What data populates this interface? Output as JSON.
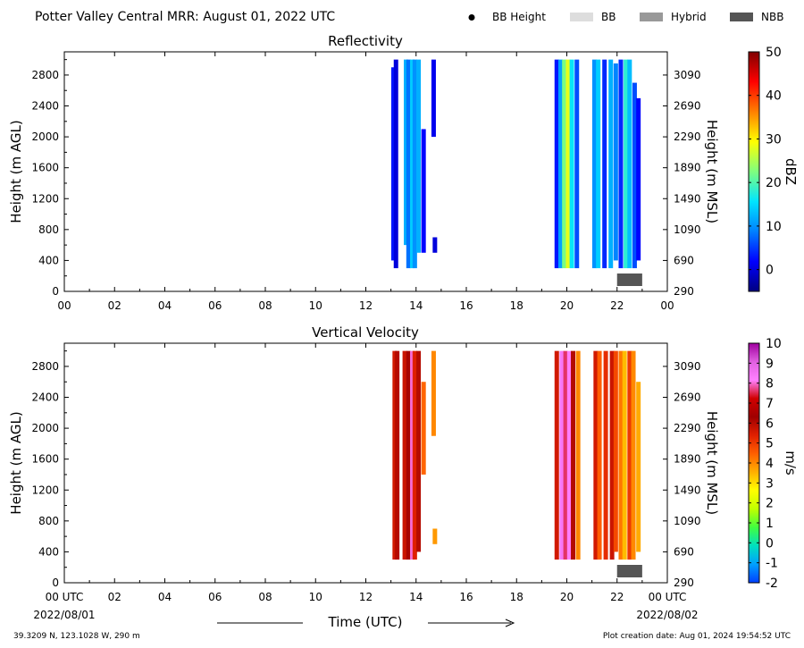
{
  "header": {
    "title": "Potter Valley Central MRR:  August 01, 2022 UTC",
    "legend": [
      {
        "label": "BB Height",
        "marker": "dot",
        "color": "#000000"
      },
      {
        "label": "BB",
        "marker": "box",
        "color": "#dddddd"
      },
      {
        "label": "Hybrid",
        "marker": "box",
        "color": "#999999"
      },
      {
        "label": "NBB",
        "marker": "box",
        "color": "#555555"
      }
    ]
  },
  "panels": [
    {
      "title": "Reflectivity",
      "ylabel_left": "Height (m AGL)",
      "ylabel_right": "Height (m MSL)",
      "colorbar": {
        "label": "dBZ",
        "ticks": [
          "50",
          "40",
          "30",
          "20",
          "10",
          "0"
        ],
        "tick_values": [
          50,
          40,
          30,
          20,
          10,
          0
        ],
        "range": [
          -5,
          50
        ],
        "colors": [
          "#000080",
          "#0000ff",
          "#0080ff",
          "#00e5ff",
          "#7fff7f",
          "#ffff00",
          "#ff8000",
          "#ff0000",
          "#800000"
        ]
      }
    },
    {
      "title": "Vertical Velocity",
      "ylabel_left": "Height (m AGL)",
      "ylabel_right": "Height (m MSL)",
      "colorbar": {
        "label": "m/s",
        "ticks": [
          "10",
          "9",
          "8",
          "7",
          "6",
          "5",
          "4",
          "3",
          "2",
          "1",
          "0",
          "-1",
          "-2"
        ],
        "tick_values": [
          10,
          9,
          8,
          7,
          6,
          5,
          4,
          3,
          2,
          1,
          0,
          -1,
          -2
        ],
        "range": [
          -2,
          10
        ],
        "colors": [
          "#0040ff",
          "#00a0ff",
          "#00e0c0",
          "#40ff40",
          "#c0ff00",
          "#ffff00",
          "#ffb000",
          "#ff6000",
          "#e02000",
          "#a00000",
          "#d00000",
          "#ff80ff",
          "#e060e0",
          "#a000a0"
        ]
      }
    }
  ],
  "footer": {
    "xlabel": "Time (UTC)",
    "start_date": "2022/08/01",
    "end_date": "2022/08/02",
    "location": "39.3209 N, 123.1028 W, 290 m",
    "creation": "Plot creation date: Aug 01, 2024 19:54:52 UTC"
  },
  "chart_data": [
    {
      "type": "heatmap",
      "title": "Reflectivity",
      "x_ticks": [
        "00",
        "02",
        "04",
        "06",
        "08",
        "10",
        "12",
        "14",
        "16",
        "18",
        "20",
        "22",
        "00"
      ],
      "xlim": [
        0,
        24
      ],
      "ylim_agl": [
        0,
        3100
      ],
      "y_ticks_agl": [
        "0",
        "400",
        "800",
        "1200",
        "1600",
        "2000",
        "2400",
        "2800"
      ],
      "y_ticks_msl": [
        "290",
        "690",
        "1090",
        "1490",
        "1890",
        "2290",
        "2690",
        "3090"
      ],
      "colorbar_unit": "dBZ",
      "bright_band": {
        "class": "NBB",
        "start_hour": 22.0,
        "end_hour": 23.0
      },
      "columns": [
        {
          "t": 13.1,
          "bottom": 400,
          "top": 2900,
          "value": 3
        },
        {
          "t": 13.2,
          "bottom": 300,
          "top": 3000,
          "value": 0
        },
        {
          "t": 13.6,
          "bottom": 600,
          "top": 3000,
          "value": 12
        },
        {
          "t": 13.7,
          "bottom": 300,
          "top": 3000,
          "value": 8
        },
        {
          "t": 13.85,
          "bottom": 300,
          "top": 3000,
          "value": 14
        },
        {
          "t": 13.95,
          "bottom": 300,
          "top": 3000,
          "value": 10
        },
        {
          "t": 14.1,
          "bottom": 500,
          "top": 3000,
          "value": 12
        },
        {
          "t": 14.3,
          "bottom": 500,
          "top": 2100,
          "value": 2
        },
        {
          "t": 14.7,
          "bottom": 2000,
          "top": 3000,
          "value": 1
        },
        {
          "t": 14.75,
          "bottom": 500,
          "top": 700,
          "value": 0
        },
        {
          "t": 19.6,
          "bottom": 300,
          "top": 3000,
          "value": 3
        },
        {
          "t": 19.75,
          "bottom": 300,
          "top": 3000,
          "value": 11
        },
        {
          "t": 19.9,
          "bottom": 300,
          "top": 3000,
          "value": 22
        },
        {
          "t": 20.05,
          "bottom": 300,
          "top": 3000,
          "value": 28
        },
        {
          "t": 20.2,
          "bottom": 300,
          "top": 3000,
          "value": 16
        },
        {
          "t": 20.4,
          "bottom": 300,
          "top": 3000,
          "value": 6
        },
        {
          "t": 21.1,
          "bottom": 300,
          "top": 3000,
          "value": 10
        },
        {
          "t": 21.25,
          "bottom": 300,
          "top": 3000,
          "value": 14
        },
        {
          "t": 21.5,
          "bottom": 300,
          "top": 3000,
          "value": 4
        },
        {
          "t": 21.75,
          "bottom": 300,
          "top": 3000,
          "value": 12
        },
        {
          "t": 21.95,
          "bottom": 400,
          "top": 2950,
          "value": 9
        },
        {
          "t": 22.15,
          "bottom": 300,
          "top": 3000,
          "value": 4
        },
        {
          "t": 22.35,
          "bottom": 300,
          "top": 3000,
          "value": 18
        },
        {
          "t": 22.5,
          "bottom": 300,
          "top": 3000,
          "value": 13
        },
        {
          "t": 22.7,
          "bottom": 300,
          "top": 2700,
          "value": 6
        },
        {
          "t": 22.85,
          "bottom": 400,
          "top": 2500,
          "value": 2
        }
      ]
    },
    {
      "type": "heatmap",
      "title": "Vertical Velocity",
      "x_ticks": [
        "00 UTC",
        "02",
        "04",
        "06",
        "08",
        "10",
        "12",
        "14",
        "16",
        "18",
        "20",
        "22",
        "00 UTC"
      ],
      "xlim": [
        0,
        24
      ],
      "ylim_agl": [
        0,
        3100
      ],
      "y_ticks_agl": [
        "0",
        "400",
        "800",
        "1200",
        "1600",
        "2000",
        "2400",
        "2800"
      ],
      "y_ticks_msl": [
        "290",
        "690",
        "1090",
        "1490",
        "1890",
        "2290",
        "2690",
        "3090"
      ],
      "colorbar_unit": "m/s",
      "bright_band": {
        "class": "NBB",
        "start_hour": 22.0,
        "end_hour": 23.0
      },
      "columns": [
        {
          "t": 13.15,
          "bottom": 300,
          "top": 3000,
          "value": 5.6
        },
        {
          "t": 13.25,
          "bottom": 300,
          "top": 3000,
          "value": 6
        },
        {
          "t": 13.55,
          "bottom": 300,
          "top": 3000,
          "value": 5.7
        },
        {
          "t": 13.7,
          "bottom": 300,
          "top": 3000,
          "value": 6.2
        },
        {
          "t": 13.85,
          "bottom": 300,
          "top": 3000,
          "value": 8
        },
        {
          "t": 13.95,
          "bottom": 300,
          "top": 3000,
          "value": 5.4
        },
        {
          "t": 14.1,
          "bottom": 400,
          "top": 3000,
          "value": 6
        },
        {
          "t": 14.3,
          "bottom": 1400,
          "top": 2600,
          "value": 4.4
        },
        {
          "t": 14.7,
          "bottom": 1900,
          "top": 3000,
          "value": 4
        },
        {
          "t": 14.75,
          "bottom": 500,
          "top": 700,
          "value": 3.8
        },
        {
          "t": 19.6,
          "bottom": 300,
          "top": 3000,
          "value": 5.6
        },
        {
          "t": 19.8,
          "bottom": 300,
          "top": 3000,
          "value": 8.4
        },
        {
          "t": 19.95,
          "bottom": 300,
          "top": 3000,
          "value": 7.6
        },
        {
          "t": 20.1,
          "bottom": 300,
          "top": 3000,
          "value": 8.2
        },
        {
          "t": 20.25,
          "bottom": 300,
          "top": 3000,
          "value": 6
        },
        {
          "t": 20.45,
          "bottom": 300,
          "top": 3000,
          "value": 4
        },
        {
          "t": 21.15,
          "bottom": 300,
          "top": 3000,
          "value": 5.6
        },
        {
          "t": 21.3,
          "bottom": 300,
          "top": 3000,
          "value": 4.5
        },
        {
          "t": 21.55,
          "bottom": 300,
          "top": 3000,
          "value": 5.2
        },
        {
          "t": 21.8,
          "bottom": 300,
          "top": 3000,
          "value": 5.7
        },
        {
          "t": 21.95,
          "bottom": 400,
          "top": 3000,
          "value": 4.8
        },
        {
          "t": 22.15,
          "bottom": 300,
          "top": 3000,
          "value": 4.2
        },
        {
          "t": 22.3,
          "bottom": 300,
          "top": 3000,
          "value": 3.4
        },
        {
          "t": 22.5,
          "bottom": 300,
          "top": 3000,
          "value": 5
        },
        {
          "t": 22.65,
          "bottom": 300,
          "top": 3000,
          "value": 4
        },
        {
          "t": 22.85,
          "bottom": 400,
          "top": 2600,
          "value": 3.6
        }
      ]
    }
  ]
}
